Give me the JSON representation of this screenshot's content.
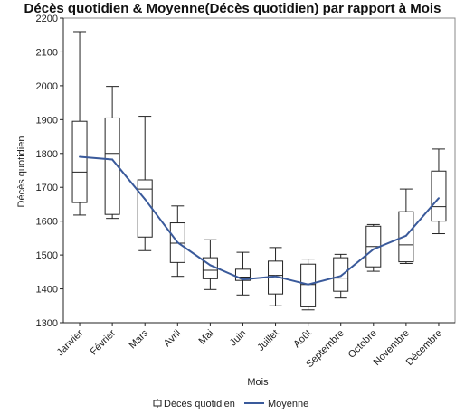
{
  "chart_data": {
    "type": "box",
    "title": "Décès quotidien & Moyenne(Décès quotidien) par rapport à Mois",
    "xlabel": "Mois",
    "ylabel": "Décès quotidien",
    "ylim": [
      1300,
      2200
    ],
    "yticks": [
      1300,
      1400,
      1500,
      1600,
      1700,
      1800,
      1900,
      2000,
      2100,
      2200
    ],
    "categories": [
      "Janvier",
      "Février",
      "Mars",
      "Avril",
      "Mai",
      "Juin",
      "Juillet",
      "Août",
      "Septembre",
      "Octobre",
      "Novembre",
      "Décembre"
    ],
    "box_series": {
      "name": "Décès quotidien",
      "boxes": [
        {
          "min": 1618,
          "q1": 1655,
          "median": 1745,
          "q3": 1895,
          "max": 2160
        },
        {
          "min": 1608,
          "q1": 1620,
          "median": 1800,
          "q3": 1905,
          "max": 1998
        },
        {
          "min": 1513,
          "q1": 1553,
          "median": 1695,
          "q3": 1722,
          "max": 1910
        },
        {
          "min": 1437,
          "q1": 1478,
          "median": 1535,
          "q3": 1595,
          "max": 1645
        },
        {
          "min": 1398,
          "q1": 1430,
          "median": 1455,
          "q3": 1492,
          "max": 1545
        },
        {
          "min": 1382,
          "q1": 1425,
          "median": 1435,
          "q3": 1458,
          "max": 1508
        },
        {
          "min": 1350,
          "q1": 1385,
          "median": 1440,
          "q3": 1482,
          "max": 1522
        },
        {
          "min": 1338,
          "q1": 1347,
          "median": 1413,
          "q3": 1473,
          "max": 1488
        },
        {
          "min": 1373,
          "q1": 1393,
          "median": 1432,
          "q3": 1492,
          "max": 1502
        },
        {
          "min": 1452,
          "q1": 1465,
          "median": 1525,
          "q3": 1585,
          "max": 1590
        },
        {
          "min": 1475,
          "q1": 1480,
          "median": 1530,
          "q3": 1628,
          "max": 1695
        },
        {
          "min": 1563,
          "q1": 1600,
          "median": 1643,
          "q3": 1748,
          "max": 1813
        }
      ]
    },
    "line_series": {
      "name": "Moyenne",
      "values": [
        1790,
        1782,
        1665,
        1537,
        1470,
        1428,
        1437,
        1413,
        1438,
        1517,
        1557,
        1668
      ]
    },
    "grid": false,
    "legend": "bottom-center",
    "colors": {
      "box_stroke": "#222222",
      "line": "#3a5a9b"
    }
  }
}
